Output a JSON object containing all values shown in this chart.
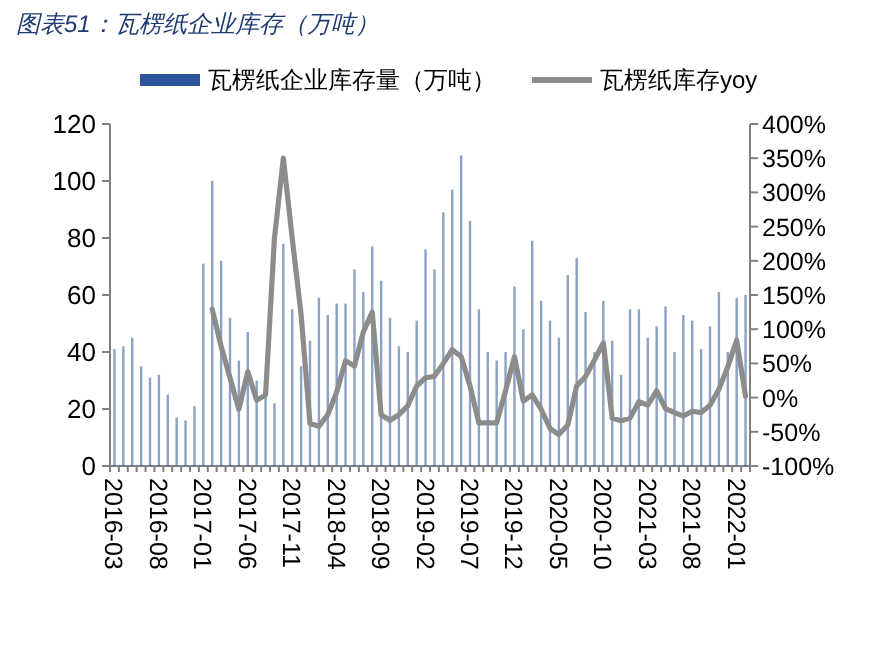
{
  "chart_data": {
    "type": "bar",
    "title": "图表51：瓦楞纸企业库存（万吨）",
    "categories": [
      "2016-03",
      null,
      null,
      null,
      null,
      "2016-08",
      null,
      null,
      null,
      null,
      "2017-01",
      null,
      null,
      null,
      null,
      "2017-06",
      null,
      null,
      null,
      null,
      "2017-11",
      null,
      null,
      null,
      null,
      "2018-04",
      null,
      null,
      null,
      null,
      "2018-09",
      null,
      null,
      null,
      null,
      "2019-02",
      null,
      null,
      null,
      null,
      "2019-07",
      null,
      null,
      null,
      null,
      "2019-12",
      null,
      null,
      null,
      null,
      "2020-05",
      null,
      null,
      null,
      null,
      "2020-10",
      null,
      null,
      null,
      null,
      "2021-03",
      null,
      null,
      null,
      null,
      "2021-08",
      null,
      null,
      null,
      null,
      "2022-01",
      null
    ],
    "series": [
      {
        "name": "瓦楞纸企业库存量（万吨）",
        "color": "#2e5597",
        "values": [
          41,
          42,
          45,
          35,
          31,
          32,
          25,
          17,
          16,
          21,
          71,
          100,
          72,
          52,
          37,
          47,
          30,
          25,
          22,
          78,
          55,
          35,
          44,
          59,
          53,
          57,
          57,
          69,
          61,
          77,
          65,
          52,
          42,
          40,
          51,
          76,
          69,
          89,
          97,
          109,
          86,
          55,
          40,
          37,
          40,
          63,
          48,
          79,
          58,
          51,
          45,
          67,
          73,
          54,
          40,
          58,
          44,
          32,
          55,
          55,
          45,
          49,
          56,
          40,
          53,
          51,
          41,
          49,
          61,
          40,
          59,
          60
        ]
      },
      {
        "name": "瓦楞纸库存yoy",
        "type": "line",
        "axis": "y2",
        "color": "#8c8c8c",
        "values": [
          null,
          null,
          null,
          null,
          null,
          null,
          null,
          null,
          null,
          null,
          null,
          129,
          75,
          29,
          -17,
          38,
          -4,
          4,
          233,
          350,
          233,
          121,
          -38,
          -42,
          -25,
          8,
          54,
          46,
          96,
          125,
          -25,
          -33,
          -25,
          -12,
          17,
          29,
          31,
          50,
          70,
          60,
          17,
          -37,
          -37,
          -37,
          10,
          60,
          -5,
          4,
          -17,
          -45,
          -54,
          -40,
          17,
          31,
          55,
          80,
          -30,
          -34,
          -30,
          -6,
          -11,
          10,
          -16,
          -22,
          -27,
          -20,
          -22,
          -11,
          12,
          45,
          84,
          2
        ]
      }
    ],
    "ylim": [
      0,
      120
    ],
    "yticks": [
      0,
      20,
      40,
      60,
      80,
      100,
      120
    ],
    "y2lim": [
      -100,
      400
    ],
    "y2ticks": [
      {
        "value": -100,
        "label": "-100%"
      },
      {
        "value": -50,
        "label": "-50%"
      },
      {
        "value": 0,
        "label": "0%"
      },
      {
        "value": 50,
        "label": "50%"
      },
      {
        "value": 100,
        "label": "100%"
      },
      {
        "value": 150,
        "label": "150%"
      },
      {
        "value": 200,
        "label": "200%"
      },
      {
        "value": 250,
        "label": "250%"
      },
      {
        "value": 300,
        "label": "300%"
      },
      {
        "value": 350,
        "label": "350%"
      },
      {
        "value": 400,
        "label": "400%"
      }
    ],
    "legend": "top",
    "grid": false
  }
}
